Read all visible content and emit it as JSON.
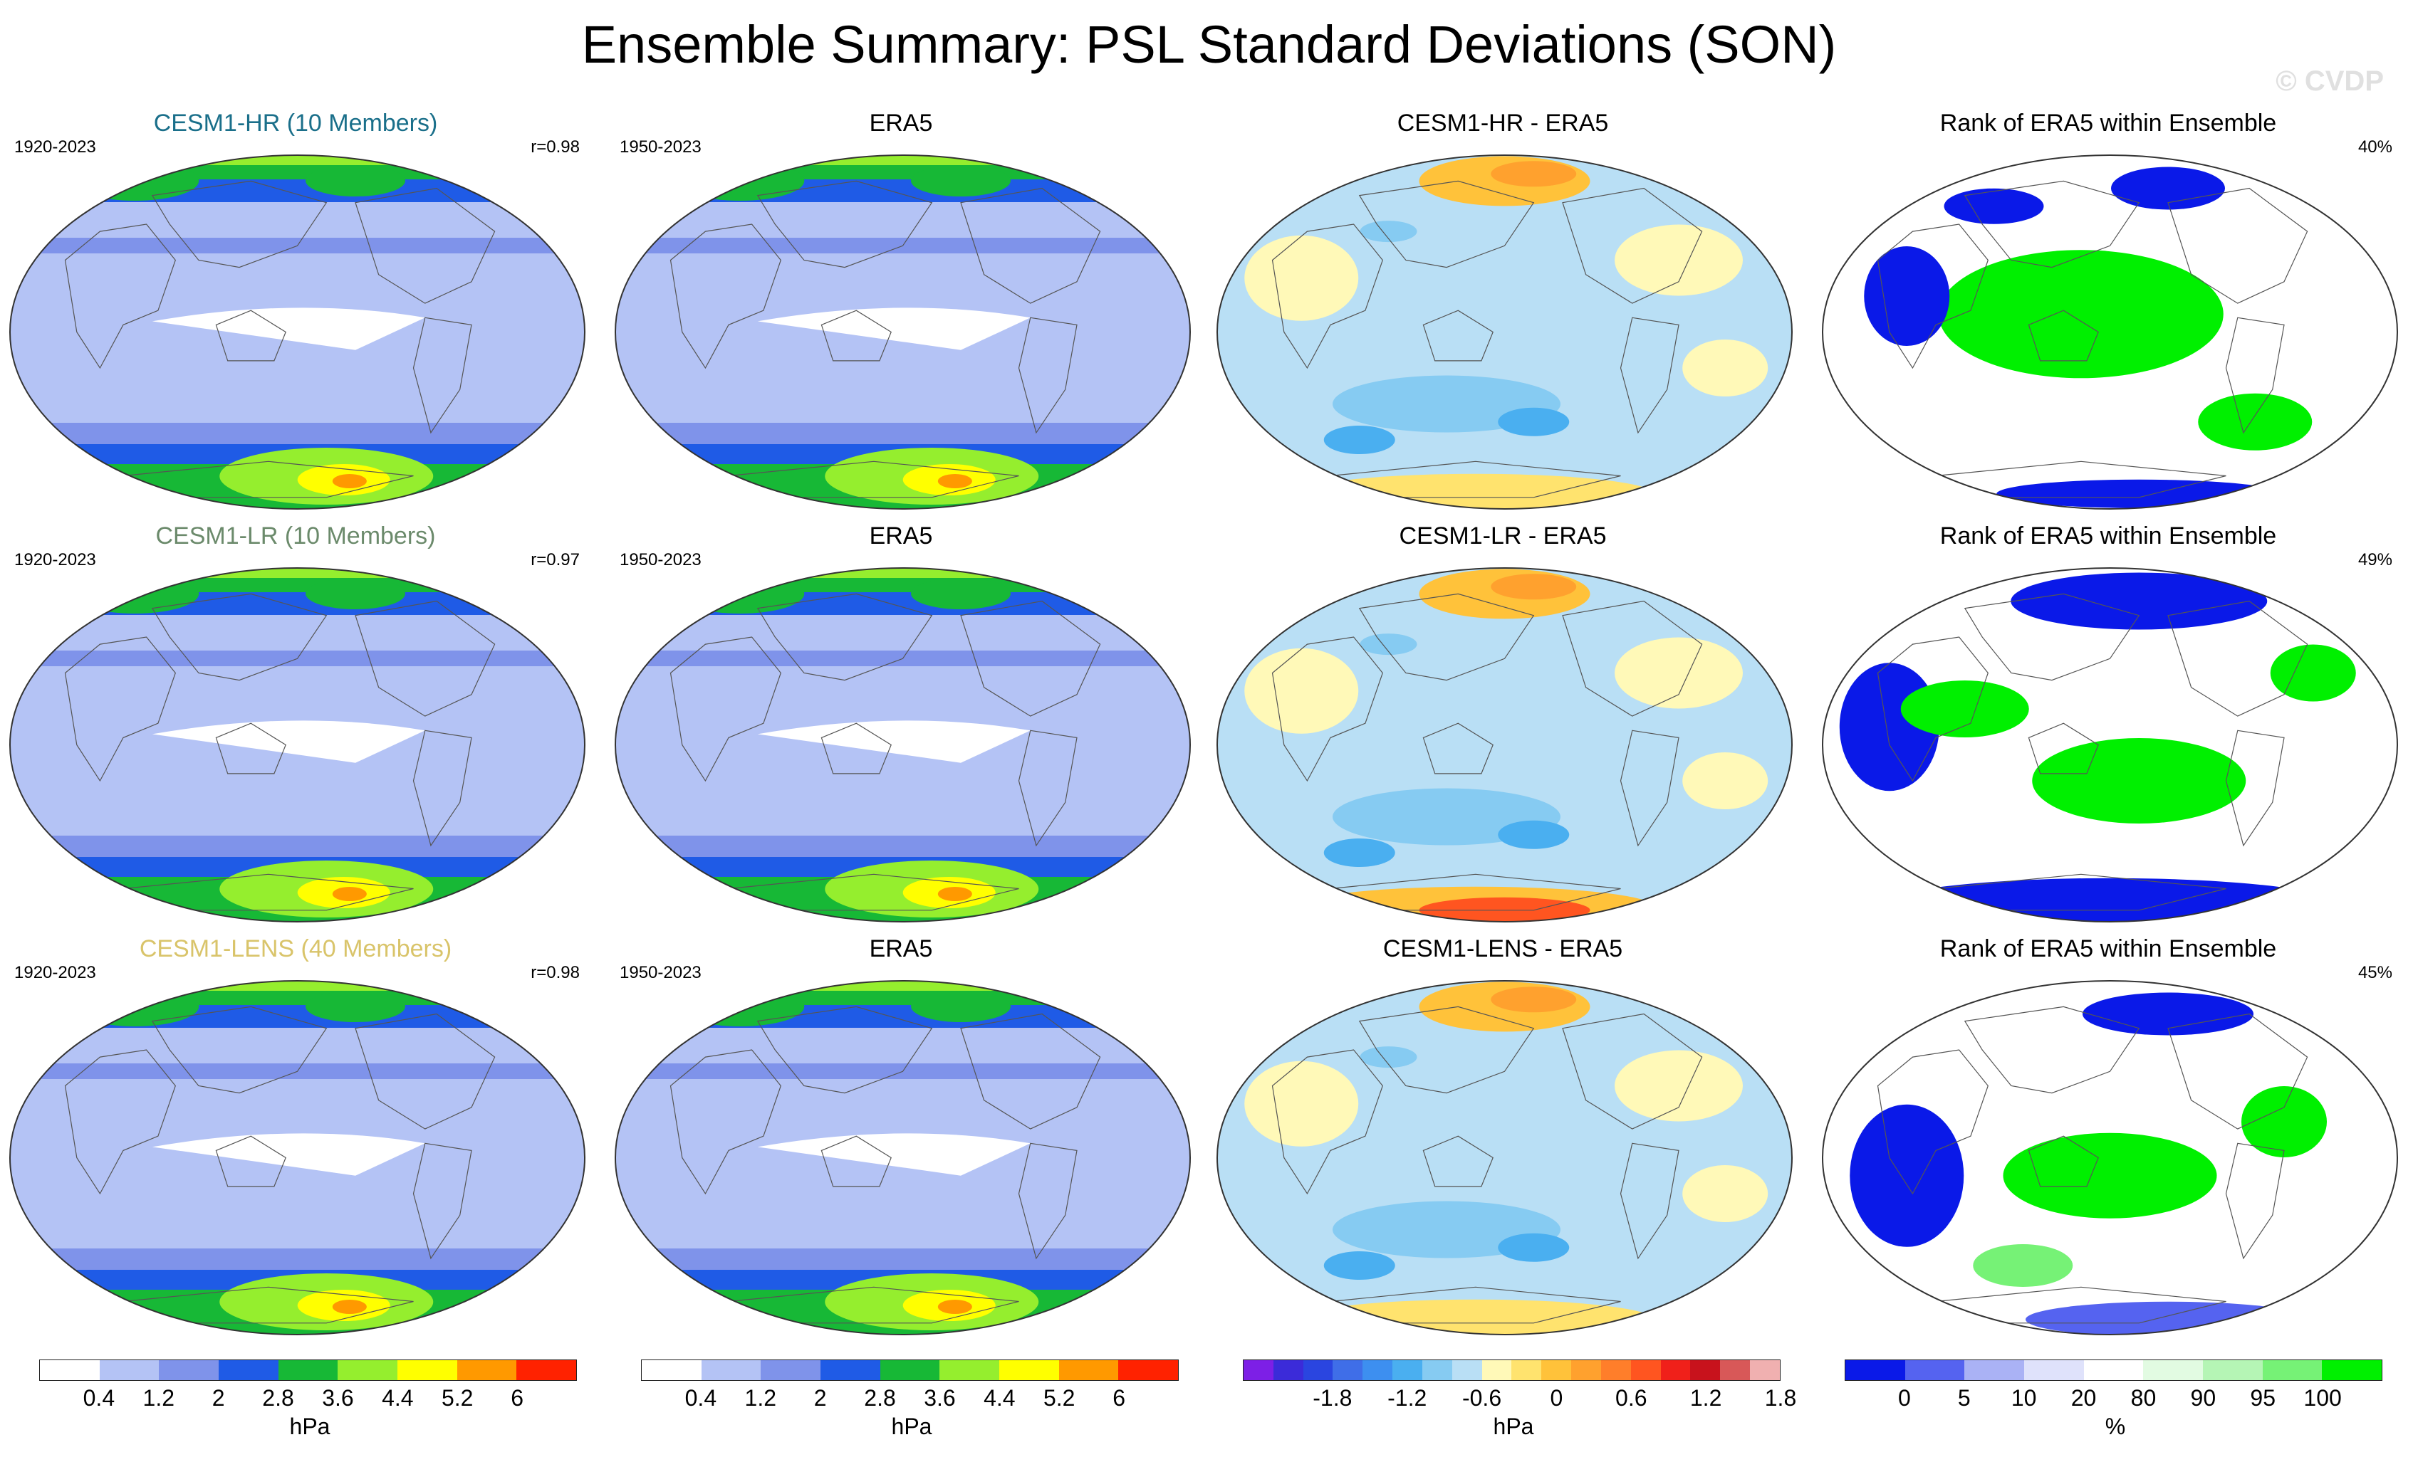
{
  "title": "Ensemble Summary: PSL Standard Deviations (SON)",
  "watermark": "© CVDP",
  "chart_data": {
    "type": "heatmap",
    "title": "Ensemble Summary: PSL Standard Deviations (SON)",
    "projection": "global map",
    "rows": [
      {
        "model": "CESM1-HR (10 Members)",
        "model_color": "#1a6f8a",
        "model_period": "1920-2023",
        "pattern_correlation": "r=0.98",
        "obs_title": "ERA5",
        "obs_period": "1950-2023",
        "diff_title": "CESM1-HR - ERA5",
        "rank_title": "Rank of ERA5 within Ensemble",
        "rank_percent": "40%"
      },
      {
        "model": "CESM1-LR (10 Members)",
        "model_color": "#6b8a6b",
        "model_period": "1920-2023",
        "pattern_correlation": "r=0.97",
        "obs_title": "ERA5",
        "obs_period": "1950-2023",
        "diff_title": "CESM1-LR - ERA5",
        "rank_title": "Rank of ERA5 within Ensemble",
        "rank_percent": "49%"
      },
      {
        "model": "CESM1-LENS (40 Members)",
        "model_color": "#d9c46a",
        "model_period": "1920-2023",
        "pattern_correlation": "r=0.98",
        "obs_title": "ERA5",
        "obs_period": "1950-2023",
        "diff_title": "CESM1-LENS - ERA5",
        "rank_title": "Rank of ERA5 within Ensemble",
        "rank_percent": "45%"
      }
    ],
    "colorbars": [
      {
        "name": "std-dev",
        "unit": "hPa",
        "colors": [
          "#ffffff",
          "#b4c3f5",
          "#7f93ea",
          "#1f5be6",
          "#17b836",
          "#95ee2e",
          "#ffff00",
          "#ff9900",
          "#ff2200"
        ],
        "ticks": [
          "0.4",
          "1.2",
          "2",
          "2.8",
          "3.6",
          "4.4",
          "5.2",
          "6"
        ]
      },
      {
        "name": "std-dev-obs",
        "unit": "hPa",
        "colors": [
          "#ffffff",
          "#b4c3f5",
          "#7f93ea",
          "#1f5be6",
          "#17b836",
          "#95ee2e",
          "#ffff00",
          "#ff9900",
          "#ff2200"
        ],
        "ticks": [
          "0.4",
          "1.2",
          "2",
          "2.8",
          "3.6",
          "4.4",
          "5.2",
          "6"
        ]
      },
      {
        "name": "difference",
        "unit": "hPa",
        "colors": [
          "#7d1fe6",
          "#3b2bd9",
          "#2a45e0",
          "#3f6ee8",
          "#3d8ff0",
          "#4aaff0",
          "#86cbf2",
          "#b9dff5",
          "#fff9b8",
          "#ffe36e",
          "#ffc23a",
          "#ffa12e",
          "#ff7e2a",
          "#ff5520",
          "#f0201a",
          "#c8121c",
          "#d85858",
          "#f0b0b0"
        ],
        "ticks": [
          "-1.8",
          "-1.2",
          "-0.6",
          "0",
          "0.6",
          "1.2",
          "1.8"
        ]
      },
      {
        "name": "rank",
        "unit": "%",
        "colors": [
          "#0a19e8",
          "#5563f0",
          "#aab2f5",
          "#dfe2fb",
          "#ffffff",
          "#e2fbe2",
          "#b5f5b5",
          "#76f276",
          "#00f000"
        ],
        "ticks": [
          "0",
          "5",
          "10",
          "20",
          "80",
          "90",
          "95",
          "100"
        ]
      }
    ]
  }
}
